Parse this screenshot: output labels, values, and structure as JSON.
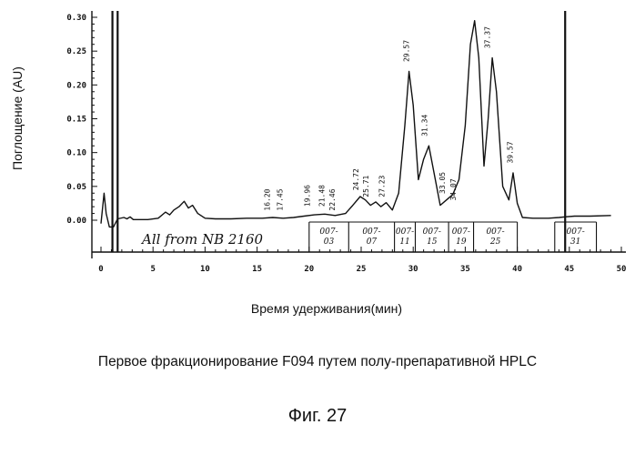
{
  "chart_data": {
    "type": "line",
    "title": "",
    "xlabel": "Время удерживания(мин)",
    "ylabel": "Поглощение  (AU)",
    "xlim": [
      0,
      50
    ],
    "ylim": [
      -0.01,
      0.3
    ],
    "x_ticks": [
      0,
      5,
      10,
      15,
      20,
      25,
      30,
      35,
      40,
      45,
      50
    ],
    "x_tick_labels": [
      "0",
      "5",
      "10",
      "15",
      "20",
      "25",
      "30",
      "35",
      "40",
      "45",
      "50"
    ],
    "y_ticks": [
      0.0,
      0.05,
      0.1,
      0.15,
      0.2,
      0.25,
      0.3
    ],
    "y_tick_labels": [
      "0.00",
      "0.05",
      "0.10",
      "0.15",
      "0.20",
      "0.25",
      "0.30"
    ],
    "series": [
      {
        "x": [
          0.0,
          0.3,
          0.5,
          0.8,
          1.2,
          1.6,
          2.2,
          2.5,
          2.8,
          3.1,
          3.6,
          4.5,
          5.5,
          6.2,
          6.6,
          7.0,
          7.5,
          8.0,
          8.4,
          8.8,
          9.3,
          10.0,
          11.0,
          12.5,
          14.0,
          15.5,
          16.5,
          17.5,
          18.5,
          19.5,
          20.5,
          21.5,
          22.5,
          23.5,
          24.2,
          24.9,
          25.4,
          25.9,
          26.4,
          26.9,
          27.4,
          28.0,
          28.6,
          29.2,
          29.6,
          30.0,
          30.5,
          31.0,
          31.5,
          32.0,
          32.6,
          33.2,
          33.8,
          34.4,
          35.0,
          35.5,
          35.9,
          36.3,
          36.8,
          37.2,
          37.6,
          38.0,
          38.6,
          39.2,
          39.6,
          40.0,
          40.5,
          41.5,
          43.0,
          44.0,
          44.6,
          45.5,
          47.0,
          49.0
        ],
        "y": [
          -0.005,
          0.04,
          0.01,
          -0.01,
          -0.01,
          0.002,
          0.004,
          0.002,
          0.005,
          0.001,
          0.001,
          0.001,
          0.003,
          0.012,
          0.008,
          0.015,
          0.02,
          0.028,
          0.018,
          0.022,
          0.01,
          0.003,
          0.002,
          0.002,
          0.003,
          0.003,
          0.004,
          0.003,
          0.004,
          0.006,
          0.008,
          0.009,
          0.007,
          0.01,
          0.022,
          0.035,
          0.03,
          0.022,
          0.027,
          0.02,
          0.026,
          0.015,
          0.04,
          0.14,
          0.22,
          0.17,
          0.06,
          0.09,
          0.11,
          0.07,
          0.022,
          0.03,
          0.038,
          0.06,
          0.14,
          0.26,
          0.295,
          0.24,
          0.08,
          0.15,
          0.24,
          0.19,
          0.05,
          0.03,
          0.07,
          0.025,
          0.004,
          0.003,
          0.003,
          0.004,
          0.005,
          0.006,
          0.006,
          0.007
        ]
      }
    ],
    "peak_labels": [
      {
        "x": 16.2,
        "y": 0.01,
        "text": "16.20"
      },
      {
        "x": 17.45,
        "y": 0.01,
        "text": "17.45"
      },
      {
        "x": 20.06,
        "y": 0.016,
        "text": "19.96"
      },
      {
        "x": 21.48,
        "y": 0.016,
        "text": "21.48"
      },
      {
        "x": 22.46,
        "y": 0.01,
        "text": "22.46"
      },
      {
        "x": 24.72,
        "y": 0.04,
        "text": "24.72"
      },
      {
        "x": 25.71,
        "y": 0.03,
        "text": "25.71"
      },
      {
        "x": 27.23,
        "y": 0.03,
        "text": "27.23"
      },
      {
        "x": 29.57,
        "y": 0.23,
        "text": "29.57"
      },
      {
        "x": 31.34,
        "y": 0.12,
        "text": "31.34"
      },
      {
        "x": 33.05,
        "y": 0.035,
        "text": "33.05"
      },
      {
        "x": 34.07,
        "y": 0.025,
        "text": "34.07"
      },
      {
        "x": 37.37,
        "y": 0.25,
        "text": "37.37"
      },
      {
        "x": 39.57,
        "y": 0.08,
        "text": "39.57"
      }
    ],
    "fractions": [
      {
        "x0": 20.0,
        "x1": 23.8,
        "lines": [
          "007-",
          "03"
        ]
      },
      {
        "x0": 23.8,
        "x1": 28.2,
        "lines": [
          "007-",
          "07"
        ]
      },
      {
        "x0": 28.2,
        "x1": 30.2,
        "lines": [
          "007-",
          "11"
        ]
      },
      {
        "x0": 30.2,
        "x1": 33.4,
        "lines": [
          "007-",
          "15"
        ]
      },
      {
        "x0": 33.4,
        "x1": 35.8,
        "lines": [
          "007-",
          "19"
        ]
      },
      {
        "x0": 35.8,
        "x1": 40.0,
        "lines": [
          "007-",
          "25"
        ]
      },
      {
        "x0": 43.6,
        "x1": 47.6,
        "lines": [
          "007-",
          "31"
        ]
      }
    ],
    "fraction_dividers": [
      20.0,
      23.8,
      28.2,
      30.2,
      33.4,
      35.8,
      40.0,
      43.6,
      47.6
    ],
    "annotation": "All from NB 2160",
    "marker_lines": [
      1.1,
      1.6,
      44.6
    ]
  },
  "caption": "Первое фракционирование F094 путем полу-препаративной HPLC",
  "figure_number": "Фиг. 27"
}
